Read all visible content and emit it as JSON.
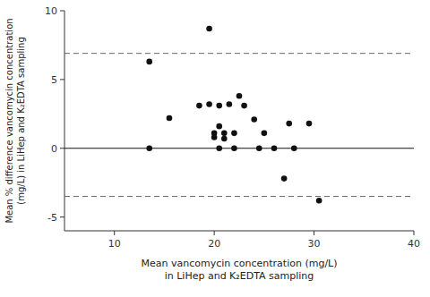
{
  "chart_data": {
    "type": "scatter",
    "x": [
      13.5,
      13.5,
      15.5,
      18.5,
      19.5,
      19.5,
      20.0,
      20.0,
      20.5,
      20.5,
      20.5,
      21.0,
      21.0,
      21.5,
      22.0,
      22.0,
      22.5,
      23.0,
      24.0,
      24.5,
      25.0,
      26.0,
      27.0,
      27.5,
      28.0,
      29.5,
      30.5
    ],
    "values": [
      6.3,
      0.0,
      2.2,
      3.1,
      8.7,
      3.2,
      1.1,
      0.8,
      0.0,
      1.6,
      3.1,
      1.1,
      0.7,
      3.2,
      0.0,
      1.1,
      3.8,
      3.1,
      2.1,
      0.0,
      1.1,
      0.0,
      -2.2,
      1.8,
      0.0,
      1.8,
      -3.8
    ],
    "color": "#111111",
    "mean_line": 0,
    "upper_loa": 6.9,
    "lower_loa": -3.5,
    "xlim": [
      5,
      40
    ],
    "ylim": [
      -6,
      10
    ],
    "xticks": [
      10,
      20,
      30,
      40
    ],
    "yticks": [
      -5,
      0,
      5,
      10
    ],
    "xlabel": [
      "Mean vancomycin concentration (mg/L)",
      "in LiHep and K₂EDTA sampling"
    ],
    "ylabel": [
      "Mean % difference vancomycin concentration",
      "(mg/L) in LiHep and K₂EDTA sampling"
    ],
    "grid": false
  }
}
